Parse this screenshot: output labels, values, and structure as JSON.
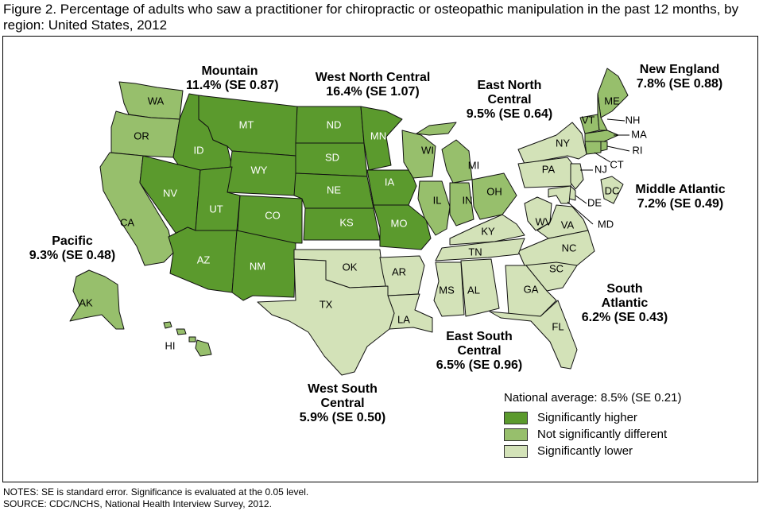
{
  "title": "Figure 2. Percentage of adults who saw a practitioner for chiropractic or osteopathic manipulation in the past 12 months, by region: United States, 2012",
  "colors": {
    "higher": "#5b9a2d",
    "not_different": "#97bf6c",
    "lower": "#d3e2b8"
  },
  "regions": {
    "pacific": {
      "name": "Pacific",
      "value": "9.3% (SE 0.48)"
    },
    "mountain": {
      "name": "Mountain",
      "value": "11.4% (SE 0.87)"
    },
    "west_north_central": {
      "name": "West North Central",
      "value": "16.4% (SE 1.07)"
    },
    "east_north_central": {
      "name_line1": "East North",
      "name_line2": "Central",
      "value": "9.5% (SE 0.64)"
    },
    "new_england": {
      "name": "New England",
      "value": "7.8% (SE 0.88)"
    },
    "middle_atlantic": {
      "name": "Middle Atlantic",
      "value": "7.2% (SE 0.49)"
    },
    "south_atlantic": {
      "name_line1": "South",
      "name_line2": "Atlantic",
      "value": "6.2% (SE 0.43)"
    },
    "east_south_central": {
      "name_line1": "East South",
      "name_line2": "Central",
      "value": "6.5% (SE 0.96)"
    },
    "west_south_central": {
      "name_line1": "West South",
      "name_line2": "Central",
      "value": "5.9% (SE 0.50)"
    }
  },
  "states": {
    "WA": "WA",
    "OR": "OR",
    "CA": "CA",
    "AK": "AK",
    "HI": "HI",
    "ID": "ID",
    "MT": "MT",
    "WY": "WY",
    "NV": "NV",
    "UT": "UT",
    "CO": "CO",
    "AZ": "AZ",
    "NM": "NM",
    "ND": "ND",
    "SD": "SD",
    "NE": "NE",
    "KS": "KS",
    "MN": "MN",
    "IA": "IA",
    "MO": "MO",
    "WI": "WI",
    "MI": "MI",
    "IL": "IL",
    "IN": "IN",
    "OH": "OH",
    "ME": "ME",
    "NH": "NH",
    "VT": "VT",
    "MA": "MA",
    "RI": "RI",
    "CT": "CT",
    "NY": "NY",
    "PA": "PA",
    "NJ": "NJ",
    "DE": "DE",
    "MD": "MD",
    "DC": "DC",
    "WV": "WV",
    "VA": "VA",
    "NC": "NC",
    "SC": "SC",
    "GA": "GA",
    "FL": "FL",
    "KY": "KY",
    "TN": "TN",
    "MS": "MS",
    "AL": "AL",
    "OK": "OK",
    "AR": "AR",
    "TX": "TX",
    "LA": "LA"
  },
  "legend": {
    "title": "National average: 8.5% (SE 0.21)",
    "items": [
      "Significantly higher",
      "Not significantly different",
      "Significantly lower"
    ]
  },
  "notes": {
    "line1": "NOTES: SE is standard error. Significance is evaluated at the 0.05 level.",
    "line2": "SOURCE: CDC/NCHS, National Health Interview Survey, 2012."
  }
}
